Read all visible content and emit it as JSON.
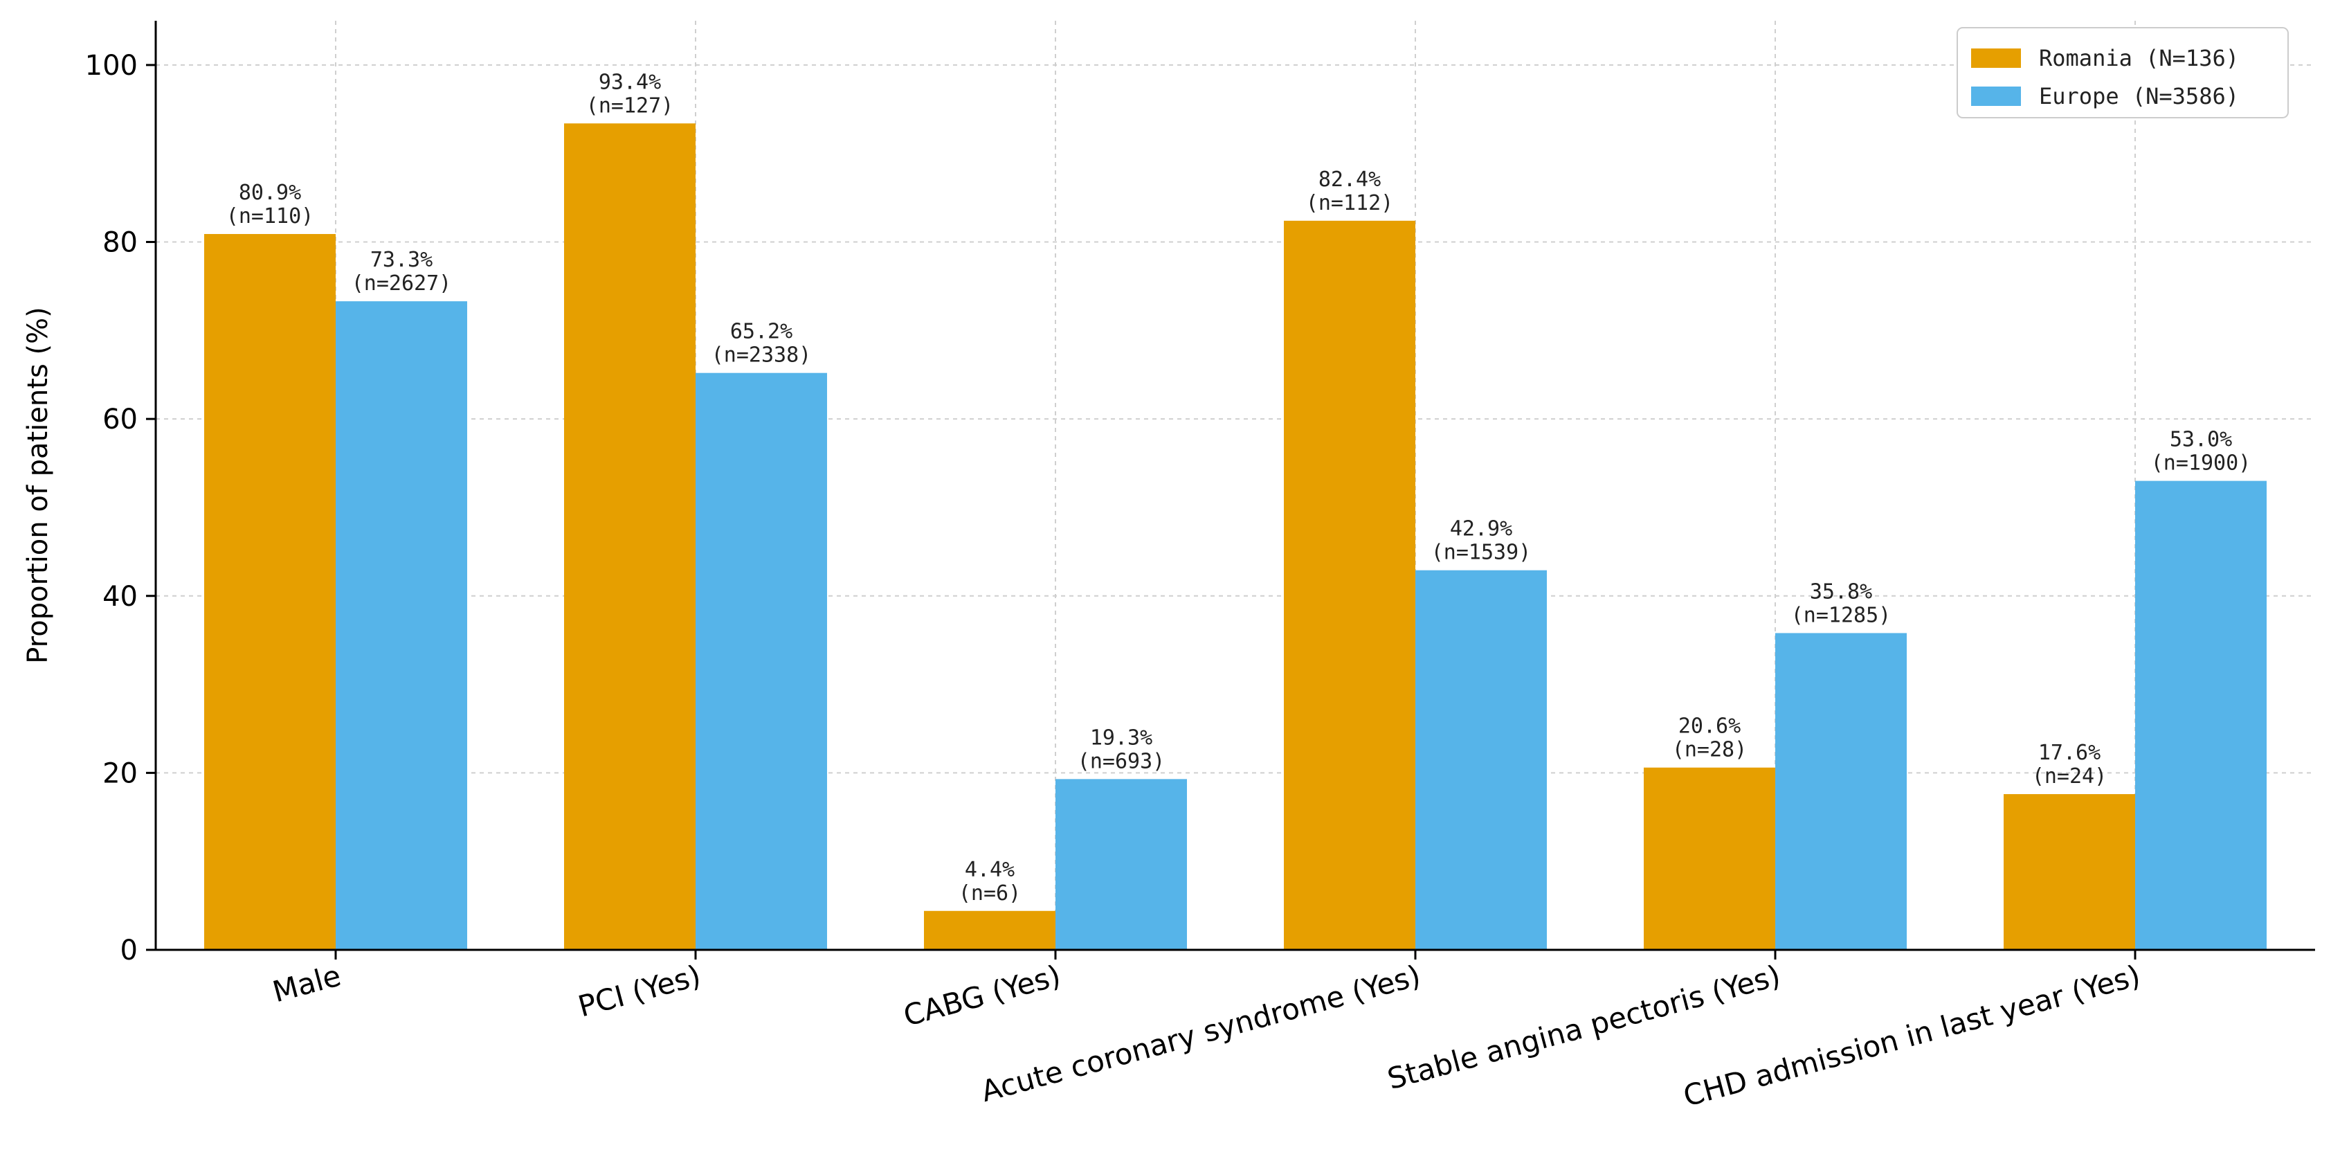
{
  "chart_data": {
    "type": "bar",
    "title": "",
    "xlabel": "",
    "ylabel": "Proportion of patients (%)",
    "ylim": [
      0,
      105
    ],
    "yticks": [
      0,
      20,
      40,
      60,
      80,
      100
    ],
    "grid": true,
    "legend_position": "top-right",
    "categories": [
      "Male",
      "PCI (Yes)",
      "CABG (Yes)",
      "Acute coronary syndrome (Yes)",
      "Stable angina pectoris (Yes)",
      "CHD admission in last year (Yes)"
    ],
    "series": [
      {
        "name": "Romania (N=136)",
        "color": "#E69F00",
        "values": [
          80.9,
          93.4,
          4.4,
          82.4,
          20.6,
          17.6
        ],
        "labels": [
          "80.9%",
          "93.4%",
          "4.4%",
          "82.4%",
          "20.6%",
          "17.6%"
        ],
        "counts": [
          "(n=110)",
          "(n=127)",
          "(n=6)",
          "(n=112)",
          "(n=28)",
          "(n=24)"
        ]
      },
      {
        "name": "Europe (N=3586)",
        "color": "#56B4E9",
        "values": [
          73.3,
          65.2,
          19.3,
          42.9,
          35.8,
          53.0
        ],
        "labels": [
          "73.3%",
          "65.2%",
          "19.3%",
          "42.9%",
          "35.8%",
          "53.0%"
        ],
        "counts": [
          "(n=2627)",
          "(n=2338)",
          "(n=693)",
          "(n=1539)",
          "(n=1285)",
          "(n=1900)"
        ]
      }
    ]
  }
}
